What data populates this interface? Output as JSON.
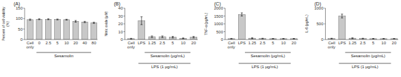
{
  "chart_data": [
    {
      "type": "bar",
      "title": "(A)",
      "ylabel": "Percent of cell viability\n(%)",
      "categories": [
        "Cell\nonly",
        "0",
        "2.5",
        "5",
        "10",
        "20",
        "40",
        "80"
      ],
      "values": [
        95,
        97,
        97,
        96,
        95,
        87,
        84,
        80
      ],
      "errors": [
        3,
        2,
        2,
        2,
        2,
        4,
        3,
        3
      ],
      "color": "#c8c8c8",
      "ylim": [
        0,
        150
      ],
      "yticks": [
        0,
        50,
        100,
        150
      ],
      "annotations": [
        "Sesamolin"
      ]
    },
    {
      "type": "bar",
      "title": "(B)",
      "ylabel": "Nitric oxide (μM)",
      "categories": [
        "Cell\nonly",
        "LPS",
        "1.25",
        "2.5",
        "5",
        "10",
        "20"
      ],
      "values": [
        1,
        24,
        3.5,
        3.5,
        3,
        1.5,
        3
      ],
      "errors": [
        0.5,
        5,
        1,
        1,
        1,
        0.5,
        1
      ],
      "color": "#c8c8c8",
      "ylim": [
        0,
        40
      ],
      "yticks": [
        0,
        10,
        20,
        30,
        40
      ],
      "annotations": [
        "Sesamolin (μg/mL)",
        "LPS (1 μg/mL)"
      ]
    },
    {
      "type": "bar",
      "title": "(C)",
      "ylabel": "TNF-α (pg/mL)",
      "categories": [
        "Cell\nonly",
        "LPS",
        "1.25",
        "2.5",
        "5",
        "10",
        "20"
      ],
      "values": [
        50,
        1600,
        80,
        60,
        50,
        50,
        50
      ],
      "errors": [
        20,
        100,
        30,
        20,
        15,
        15,
        15
      ],
      "color": "#c8c8c8",
      "ylim": [
        0,
        2000
      ],
      "yticks": [
        0,
        500,
        1000,
        1500,
        2000
      ],
      "annotations": [
        "Sesamolin (μg/mL)",
        "LPS (1 μg/mL)"
      ]
    },
    {
      "type": "bar",
      "title": "(D)",
      "ylabel": "IL-6 (pg/mL)",
      "categories": [
        "Cell\nonly",
        "LPS",
        "1.25",
        "2.5",
        "5",
        "10",
        "20"
      ],
      "values": [
        30,
        750,
        40,
        30,
        25,
        25,
        25
      ],
      "errors": [
        10,
        60,
        15,
        10,
        8,
        8,
        8
      ],
      "color": "#c8c8c8",
      "ylim": [
        0,
        1000
      ],
      "yticks": [
        0,
        500,
        1000
      ],
      "annotations": [
        "Sesamolin (μg/mL)",
        "LPS (1 μg/mL)"
      ]
    }
  ]
}
